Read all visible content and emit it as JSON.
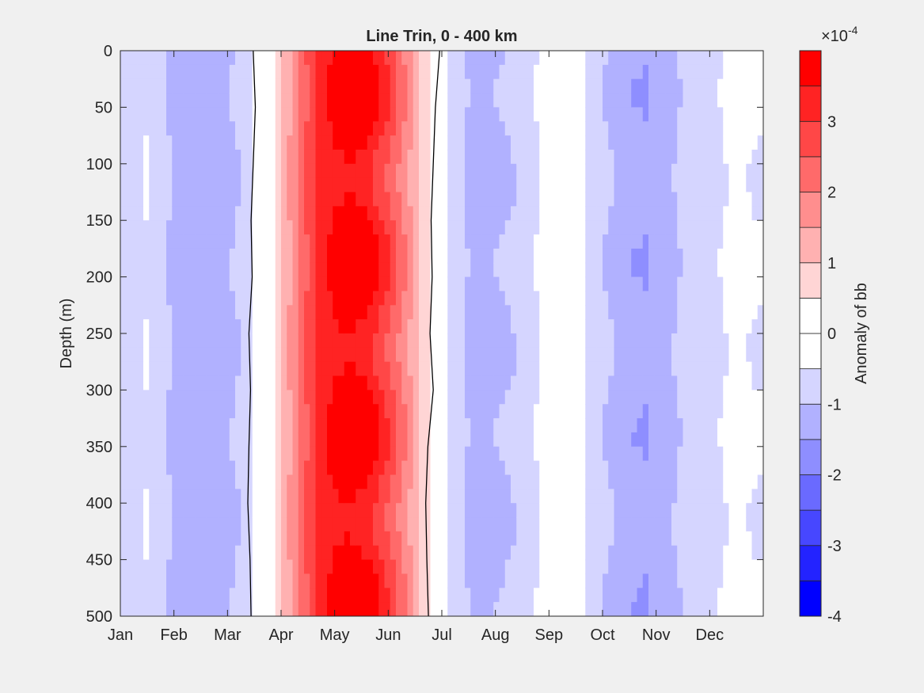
{
  "chart_data": {
    "type": "heatmap",
    "title": "Line Trin, 0 - 400 km",
    "xlabel": "",
    "ylabel": "Depth (m)",
    "x_ticks": [
      "Jan",
      "Feb",
      "Mar",
      "Apr",
      "May",
      "Jun",
      "Jul",
      "Aug",
      "Sep",
      "Oct",
      "Nov",
      "Dec"
    ],
    "x_range_months": [
      0,
      12
    ],
    "y_ticks": [
      0,
      50,
      100,
      150,
      200,
      250,
      300,
      350,
      400,
      450,
      500
    ],
    "ylim": [
      0,
      500
    ],
    "y_reversed": true,
    "colorbar": {
      "label": "Anomaly of bb",
      "exponent_label": "×10",
      "exponent_power": "-4",
      "tick_labels": [
        "-4",
        "-3",
        "-2",
        "-1",
        "0",
        "1",
        "2",
        "3"
      ],
      "tick_values": [
        -4,
        -3,
        -2,
        -1,
        0,
        1,
        2,
        3
      ],
      "range": [
        -4,
        4
      ],
      "level_step": 0.5,
      "levels_low_to_high": [
        "#0000ff",
        "#2323ff",
        "#4747ff",
        "#6a6aff",
        "#8e8eff",
        "#b1b1ff",
        "#d5d5ff",
        "#ffffff",
        "#ffffff",
        "#ffd5d5",
        "#ffb1b1",
        "#ff8e8e",
        "#ff6a6a",
        "#ff4747",
        "#ff2323",
        "#ff0000"
      ]
    },
    "depths_m": [
      0,
      50,
      100,
      150,
      200,
      250,
      300,
      350,
      400,
      450,
      500
    ],
    "months": [
      0.2,
      0.5,
      1.0,
      1.5,
      2.0,
      2.3,
      2.55,
      2.85,
      3.1,
      3.4,
      3.7,
      4.0,
      4.3,
      4.6,
      4.9,
      5.2,
      5.5,
      5.75,
      6.0,
      6.2,
      6.4,
      6.7,
      7.1,
      7.5,
      8.0,
      8.4,
      8.8,
      9.1,
      9.4,
      9.8,
      10.2,
      10.6,
      11.0,
      11.5,
      11.9
    ],
    "anomaly_profile_1e-4": [
      -0.7,
      -0.5,
      -1.1,
      -1.4,
      -1.2,
      -0.8,
      -0.35,
      0.25,
      1.3,
      2.3,
      3.1,
      3.6,
      3.8,
      3.6,
      3.0,
      2.2,
      1.3,
      0.5,
      -0.2,
      -0.6,
      -1.0,
      -1.2,
      -1.1,
      -0.8,
      -0.3,
      -0.2,
      -0.7,
      -1.0,
      -1.3,
      -1.4,
      -1.2,
      -0.8,
      -0.6,
      -0.4,
      -0.5
    ],
    "zero_contour_months": [
      [
        2.48,
        2.52,
        2.48,
        2.44,
        2.46,
        2.4,
        2.43,
        2.4,
        2.38,
        2.42,
        2.44
      ],
      [
        5.96,
        5.88,
        5.84,
        5.8,
        5.82,
        5.78,
        5.84,
        5.74,
        5.7,
        5.72,
        5.75
      ]
    ]
  }
}
